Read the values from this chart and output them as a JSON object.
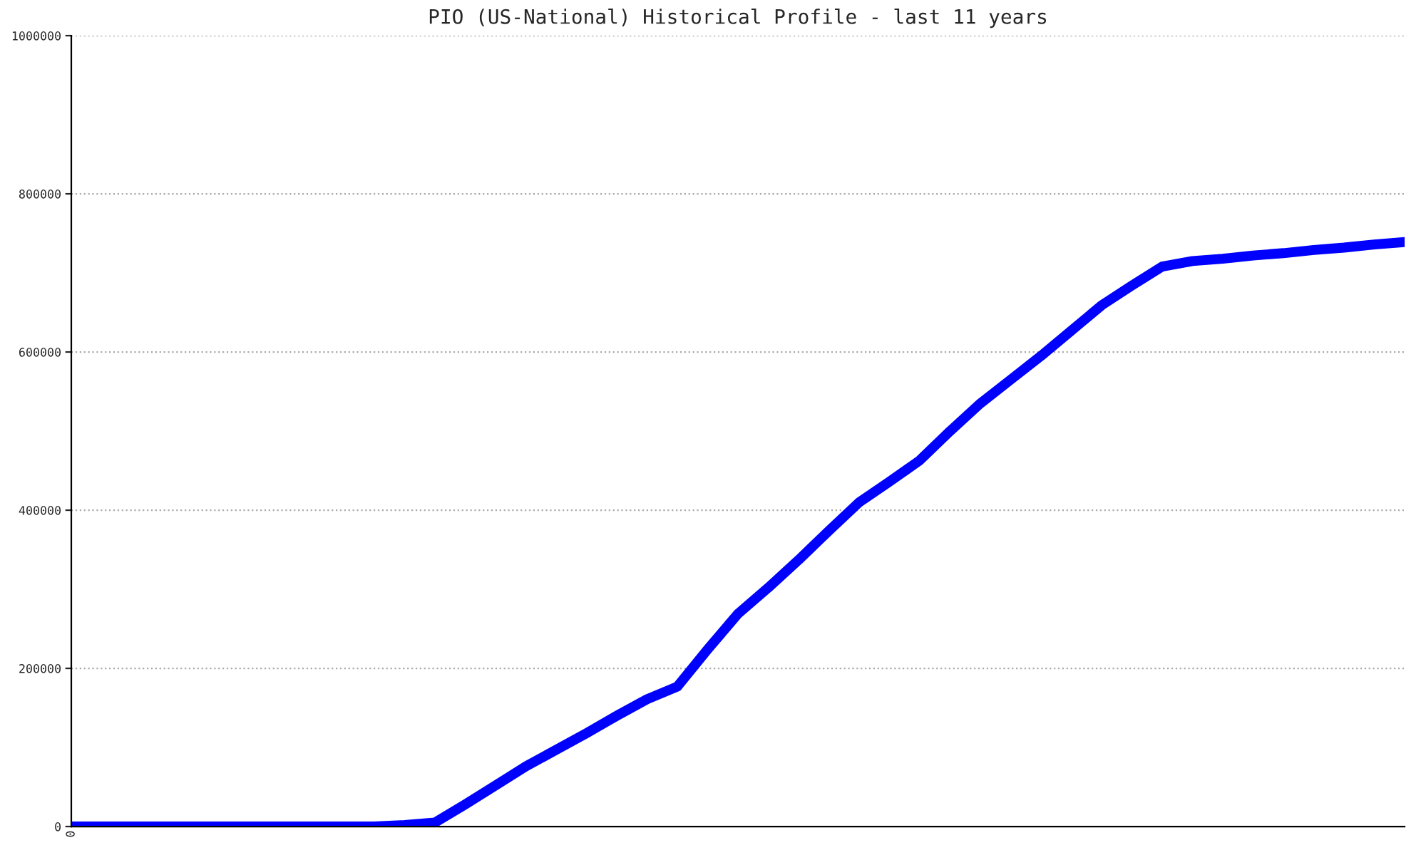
{
  "chart_data": {
    "type": "line",
    "title": "PIO (US-National) Historical Profile - last 11 years",
    "categories": [
      "0",
      null,
      null,
      null,
      null,
      null,
      null,
      null,
      null,
      null,
      null,
      null,
      null,
      null,
      null,
      null,
      null,
      null,
      null,
      null,
      null,
      null,
      null,
      null,
      null,
      null,
      null,
      null,
      null,
      null,
      null,
      null,
      null,
      null,
      null,
      null,
      null,
      null,
      null,
      null,
      null,
      null,
      null,
      null,
      null
    ],
    "series": [
      {
        "color": "#0000ff",
        "values": [
          0,
          0,
          0,
          0,
          0,
          0,
          0,
          0,
          0,
          0,
          0,
          2000,
          5000,
          28000,
          52000,
          76000,
          97000,
          118000,
          140000,
          161000,
          177000,
          224000,
          269000,
          302000,
          337000,
          374000,
          410000,
          436000,
          463000,
          500000,
          535000,
          565000,
          595000,
          627000,
          659000,
          684000,
          708000,
          715000,
          718000,
          722000,
          725000,
          729000,
          732000,
          736000,
          739000
        ]
      }
    ],
    "ylim": [
      0,
      1000000
    ],
    "yticks": [
      0,
      200000,
      400000,
      600000,
      800000,
      1000000
    ],
    "grid": "y",
    "marker": "none",
    "line_style": "solid"
  }
}
